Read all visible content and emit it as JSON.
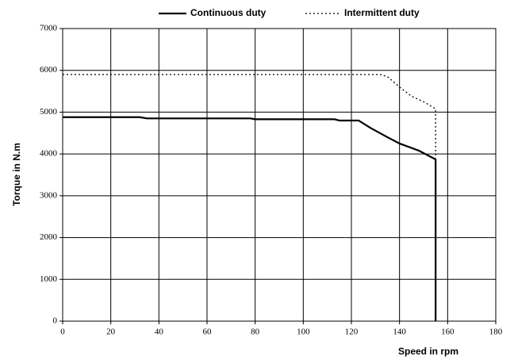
{
  "chart_data": {
    "type": "line",
    "x_label": "Speed in rpm",
    "y_label": "Torque in N.m",
    "xlim": [
      0,
      180
    ],
    "xticks": [
      0,
      20,
      40,
      60,
      80,
      100,
      120,
      140,
      160,
      180
    ],
    "ylim": [
      0,
      7000
    ],
    "yticks": [
      0,
      1000,
      2000,
      3000,
      4000,
      5000,
      6000,
      7000
    ],
    "grid": true,
    "legend": "top",
    "series": [
      {
        "name": "Continuous duty",
        "color": "#000000",
        "style": "solid",
        "x": [
          0,
          32,
          35,
          78,
          80,
          113,
          115,
          123,
          128,
          135,
          140,
          148,
          155,
          155
        ],
        "values": [
          4880,
          4880,
          4850,
          4850,
          4830,
          4830,
          4800,
          4800,
          4620,
          4400,
          4250,
          4080,
          3870,
          0
        ]
      },
      {
        "name": "Intermittent duty",
        "color": "#000000",
        "style": "dotted",
        "x": [
          0,
          132,
          135,
          140,
          145,
          150,
          155,
          155
        ],
        "values": [
          5900,
          5900,
          5850,
          5600,
          5380,
          5250,
          5080,
          3900
        ]
      }
    ]
  }
}
